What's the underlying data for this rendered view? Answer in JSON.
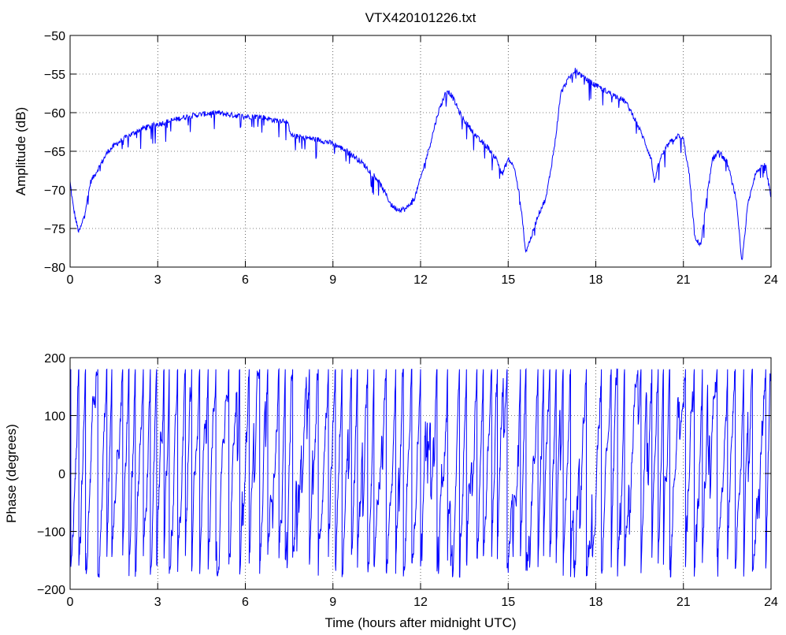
{
  "title": "VTX420101226.txt",
  "chart_data": [
    {
      "type": "line",
      "ylabel": "Amplitude (dB)",
      "xlabel": "",
      "xlim": [
        0,
        24
      ],
      "ylim": [
        -80,
        -50
      ],
      "x_ticks": [
        0,
        3,
        6,
        9,
        12,
        15,
        18,
        21,
        24
      ],
      "y_ticks": [
        -80,
        -75,
        -70,
        -65,
        -60,
        -55,
        -50
      ],
      "grid": "dotted",
      "color": "#0000ff",
      "series": [
        {
          "x": [
            0,
            0.1,
            0.2,
            0.3,
            0.4,
            0.5,
            0.7,
            1.0,
            1.3,
            1.6,
            2.0,
            2.5,
            3.0,
            3.5,
            4.0,
            4.5,
            5.0,
            5.5,
            6.0,
            6.5,
            7.0,
            7.4,
            7.6,
            8.0,
            8.5,
            9.0,
            9.5,
            10.0,
            10.5,
            10.8,
            11.0,
            11.2,
            11.5,
            11.8,
            12.0,
            12.3,
            12.6,
            12.9,
            13.1,
            13.4,
            13.7,
            14.0,
            14.3,
            14.6,
            14.8,
            15.0,
            15.2,
            15.4,
            15.6,
            15.8,
            16.0,
            16.3,
            16.6,
            16.8,
            17.0,
            17.3,
            17.6,
            18.0,
            18.5,
            19.0,
            19.3,
            19.6,
            19.9,
            20.0,
            20.2,
            20.5,
            20.8,
            21.0,
            21.2,
            21.4,
            21.6,
            21.8,
            22.0,
            22.2,
            22.5,
            22.8,
            23.0,
            23.2,
            23.5,
            23.8,
            24.0
          ],
          "values": [
            -69,
            -72,
            -74,
            -75.5,
            -74.5,
            -73,
            -69,
            -67,
            -65,
            -64,
            -63,
            -62,
            -61.5,
            -61,
            -60.5,
            -60.2,
            -60,
            -60.3,
            -60.5,
            -60.5,
            -61,
            -61,
            -63,
            -63.2,
            -63.5,
            -64,
            -65,
            -66.5,
            -68.5,
            -70.5,
            -72,
            -72.5,
            -72.5,
            -71,
            -68.5,
            -64.5,
            -60,
            -57,
            -58,
            -60.5,
            -62,
            -63.5,
            -64.5,
            -66,
            -68,
            -66,
            -67,
            -71,
            -78,
            -76,
            -73.5,
            -71,
            -64,
            -57.5,
            -56,
            -54.5,
            -55.5,
            -56.5,
            -57.5,
            -58.5,
            -60.5,
            -63,
            -66,
            -69,
            -66,
            -64,
            -63,
            -63.5,
            -68,
            -76.5,
            -77,
            -71,
            -66,
            -65,
            -66.5,
            -71,
            -79.5,
            -72,
            -67.5,
            -66.5,
            -71
          ]
        }
      ]
    },
    {
      "type": "line",
      "ylabel": "Phase (degrees)",
      "xlabel": "Time (hours after midnight UTC)",
      "xlim": [
        0,
        24
      ],
      "ylim": [
        -200,
        200
      ],
      "x_ticks": [
        0,
        3,
        6,
        9,
        12,
        15,
        18,
        21,
        24
      ],
      "y_ticks": [
        -200,
        -100,
        0,
        100,
        200
      ],
      "grid": "dotted",
      "color": "#0000ff",
      "series": [
        {
          "style": "phase wraps between -180 and 180 roughly every 0.3 to 0.6 hours",
          "range": [
            -180,
            180
          ]
        }
      ]
    }
  ]
}
